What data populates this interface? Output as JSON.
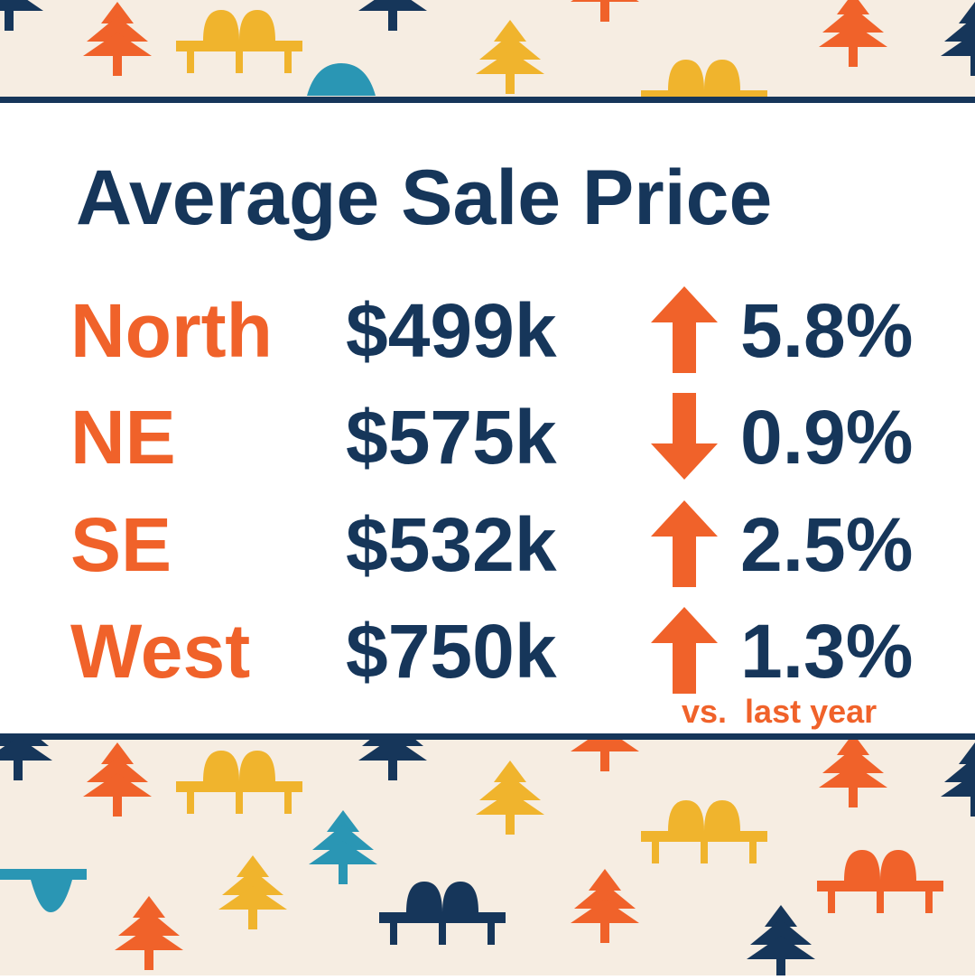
{
  "title": "Average Sale Price",
  "rows": [
    {
      "region": "North",
      "price": "$499k",
      "direction": "up",
      "change": "5.8%"
    },
    {
      "region": "NE",
      "price": "$575k",
      "direction": "down",
      "change": "0.9%"
    },
    {
      "region": "SE",
      "price": "$532k",
      "direction": "up",
      "change": "2.5%"
    },
    {
      "region": "West",
      "price": "$750k",
      "direction": "up",
      "change": "1.3%"
    }
  ],
  "footnote": "vs.  last year"
}
